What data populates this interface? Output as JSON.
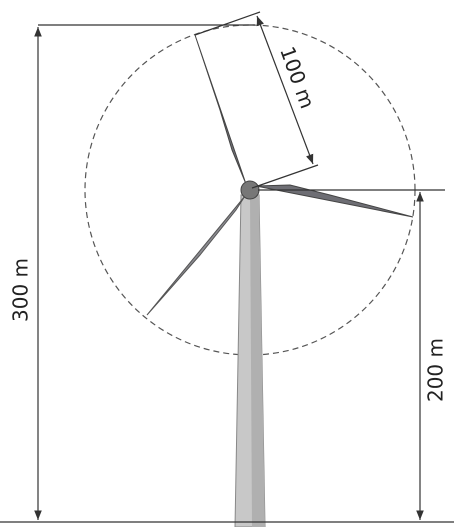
{
  "labels": {
    "rotor_radius": "100 m",
    "total_height": "300 m",
    "hub_height": "200 m"
  }
}
